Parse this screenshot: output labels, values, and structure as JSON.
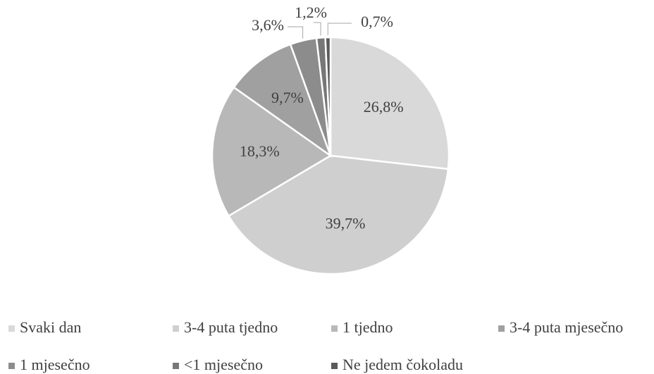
{
  "chart_data": {
    "type": "pie",
    "categories": [
      "Svaki dan",
      "3-4 puta tjedno",
      "1 tjedno",
      "3-4 puta mjesečno",
      "1 mjesečno",
      "<1 mjesečno",
      "Ne jedem čokoladu"
    ],
    "values": [
      26.8,
      39.7,
      18.3,
      9.7,
      3.6,
      1.2,
      0.7
    ],
    "value_labels": [
      "26,8%",
      "39,7%",
      "18,3%",
      "9,7%",
      "3,6%",
      "1,2%",
      "0,7%"
    ],
    "colors": [
      "#d9d9d9",
      "#cfcfcf",
      "#b8b8b8",
      "#a0a0a0",
      "#8c8c8c",
      "#777777",
      "#5a5a5a"
    ],
    "legend": "bottom"
  }
}
